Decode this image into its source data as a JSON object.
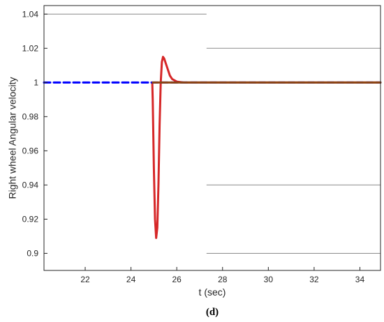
{
  "chart_data": {
    "type": "line",
    "xlabel": "t (sec)",
    "ylabel": "Right wheel Angular  velocity",
    "xlim": [
      20.2,
      34.9
    ],
    "ylim": [
      0.89,
      1.045
    ],
    "xticks": [
      22,
      24,
      26,
      28,
      30,
      32,
      34
    ],
    "yticks": [
      0.9,
      0.92,
      0.94,
      0.96,
      0.98,
      1,
      1.02,
      1.04
    ],
    "xtick_labels": [
      "22",
      "24",
      "26",
      "28",
      "30",
      "32",
      "34"
    ],
    "ytick_labels": [
      "0.9",
      "0.92",
      "0.94",
      "0.96",
      "0.98",
      "1",
      "1.02",
      "1.04"
    ],
    "grid": "partial horizontal gridlines",
    "series": [
      {
        "color": "#d62728",
        "style": "solid",
        "x": [
          24.93,
          24.95,
          25.0,
          25.05,
          25.1,
          25.15,
          25.2,
          25.25,
          25.3,
          25.35,
          25.4,
          25.45,
          25.5,
          25.6,
          25.7,
          25.8,
          26.0,
          26.3,
          27.0,
          34.9
        ],
        "y": [
          1.0,
          0.99,
          0.95,
          0.92,
          0.909,
          0.915,
          0.94,
          0.975,
          1.0,
          1.012,
          1.015,
          1.014,
          1.012,
          1.008,
          1.004,
          1.002,
          1.0005,
          1.0,
          1.0,
          1.0
        ]
      },
      {
        "color": "#0000ff",
        "style": "dashed",
        "x": [
          20.2,
          34.9
        ],
        "y": [
          1.0,
          1.0
        ]
      },
      {
        "color": "#8b4513",
        "style": "solid",
        "x": [
          24.95,
          25.3,
          34.9
        ],
        "y": [
          1.0,
          1.0,
          1.0
        ]
      }
    ]
  },
  "caption": "(d)"
}
